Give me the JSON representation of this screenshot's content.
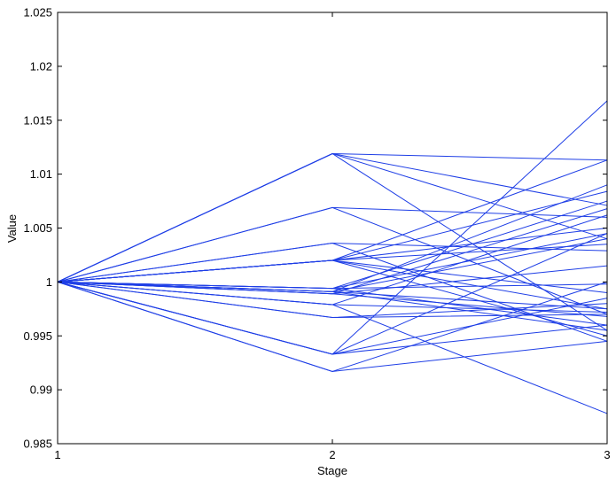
{
  "chart_data": {
    "type": "line",
    "title": "",
    "xlabel": "Stage",
    "ylabel": "Value",
    "xlim": [
      1,
      3
    ],
    "ylim": [
      0.985,
      1.025
    ],
    "xticks": [
      1,
      2,
      3
    ],
    "xtick_labels": [
      "1",
      "2",
      "3"
    ],
    "yticks": [
      0.985,
      0.99,
      0.995,
      1,
      1.005,
      1.01,
      1.015,
      1.02,
      1.025
    ],
    "ytick_labels": [
      "0.985",
      "0.99",
      "0.995",
      "1",
      "1.005",
      "1.01",
      "1.015",
      "1.02",
      "1.025"
    ],
    "grid": false,
    "legend": false,
    "line_color": "#1f3fe6",
    "x": [
      1,
      2,
      3
    ],
    "series": [
      {
        "values": [
          1,
          1.0119,
          1.0113
        ]
      },
      {
        "values": [
          1,
          1.0119,
          1.0071
        ]
      },
      {
        "values": [
          1,
          1.0119,
          1.004
        ]
      },
      {
        "values": [
          1,
          1.0119,
          0.9955
        ]
      },
      {
        "values": [
          1,
          1.0069,
          1.006
        ]
      },
      {
        "values": [
          1,
          1.0069,
          0.997
        ]
      },
      {
        "values": [
          1,
          1.0036,
          1.0029
        ]
      },
      {
        "values": [
          1,
          1.0036,
          0.9945
        ]
      },
      {
        "values": [
          1,
          1.002,
          1.0113
        ]
      },
      {
        "values": [
          1,
          1.002,
          1.0084
        ]
      },
      {
        "values": [
          1,
          1.002,
          1.005
        ]
      },
      {
        "values": [
          1,
          1.002,
          1.0035
        ]
      },
      {
        "values": [
          1,
          1.002,
          0.999
        ]
      },
      {
        "values": [
          1,
          1.002,
          0.9975
        ]
      },
      {
        "values": [
          1,
          1.002,
          0.995
        ]
      },
      {
        "values": [
          1,
          0.9994,
          1.0075
        ]
      },
      {
        "values": [
          1,
          0.9994,
          1.0045
        ]
      },
      {
        "values": [
          1,
          0.9994,
          0.9998
        ]
      },
      {
        "values": [
          1,
          0.9994,
          0.996
        ]
      },
      {
        "values": [
          1,
          0.9991,
          1.009
        ]
      },
      {
        "values": [
          1,
          0.9991,
          1.004
        ]
      },
      {
        "values": [
          1,
          0.9991,
          0.9975
        ]
      },
      {
        "values": [
          1,
          0.9991,
          0.9955
        ]
      },
      {
        "values": [
          1,
          0.9989,
          1.0068
        ]
      },
      {
        "values": [
          1,
          0.9989,
          1.0015
        ]
      },
      {
        "values": [
          1,
          0.9989,
          0.9968
        ]
      },
      {
        "values": [
          1,
          0.9979,
          1.0062
        ]
      },
      {
        "values": [
          1,
          0.9979,
          0.9972
        ]
      },
      {
        "values": [
          1,
          0.9979,
          0.9878
        ]
      },
      {
        "values": [
          1,
          0.9967,
          0.998
        ]
      },
      {
        "values": [
          1,
          0.9967,
          0.997
        ]
      },
      {
        "values": [
          1,
          0.9933,
          1.0168
        ]
      },
      {
        "values": [
          1,
          0.9933,
          1.0045
        ]
      },
      {
        "values": [
          1,
          0.9933,
          0.9985
        ]
      },
      {
        "values": [
          1,
          0.9933,
          0.996
        ]
      },
      {
        "values": [
          1,
          0.9917,
          1.0
        ]
      },
      {
        "values": [
          1,
          0.9917,
          0.9945
        ]
      }
    ]
  }
}
